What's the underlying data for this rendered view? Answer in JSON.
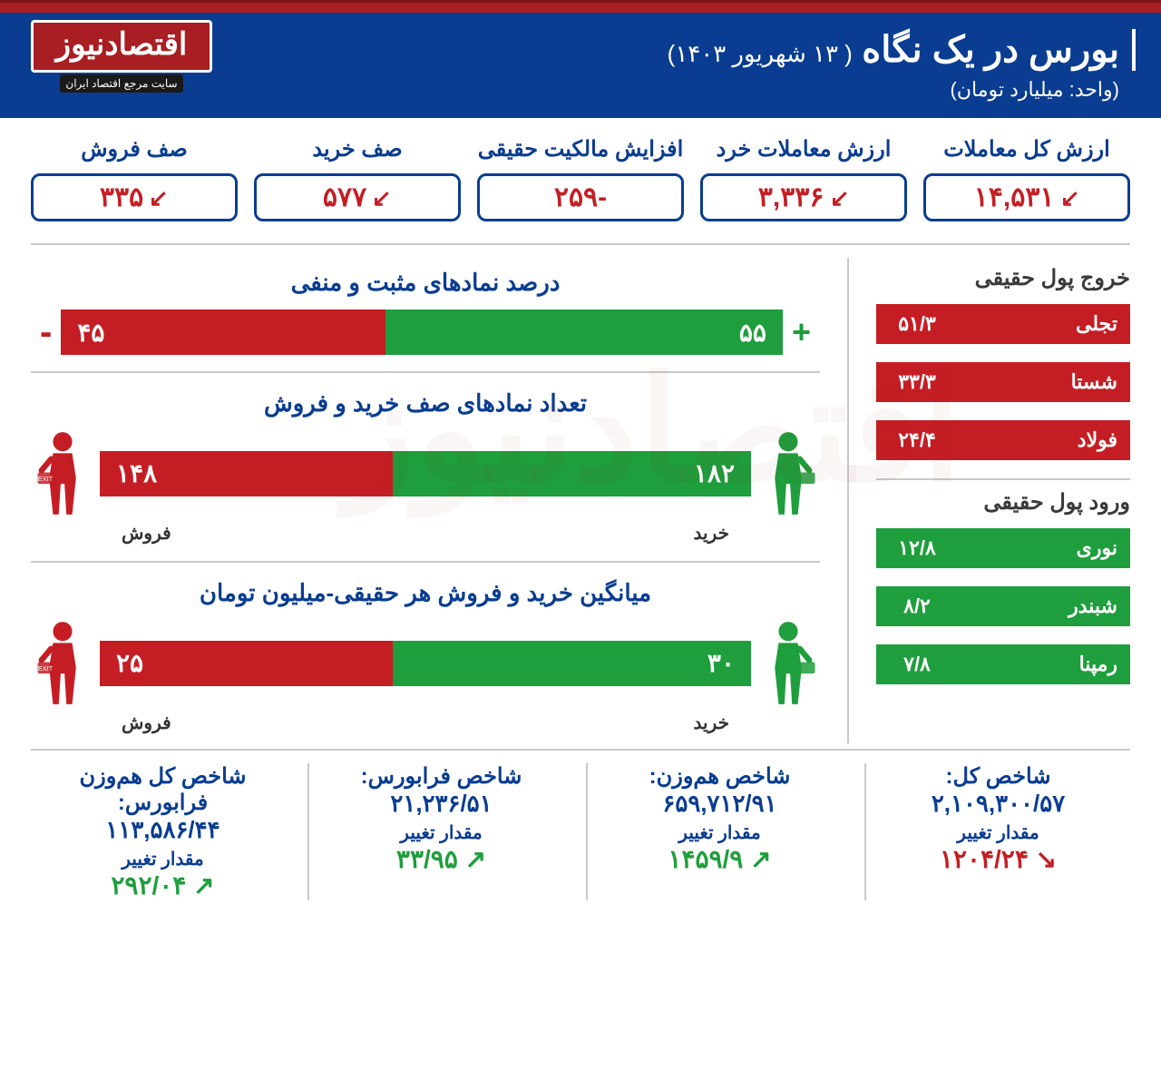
{
  "header": {
    "title": "بورس در یک نگاه",
    "date": "( ۱۳ شهریور ۱۴۰۳)",
    "unit": "(واحد: میلیارد تومان)",
    "logo_text": "اقتصادنیوز",
    "logo_sub": "سایت مرجع اقتصاد ایران"
  },
  "colors": {
    "blue": "#0a3d91",
    "red": "#c41e24",
    "green": "#1e9e3c",
    "dark_red": "#a91e22",
    "grey_line": "#c9c9c9",
    "text_dark": "#3a3a3a"
  },
  "top_stats": [
    {
      "label": "ارزش کل معاملات",
      "value": "۱۴,۵۳۱",
      "trend": "down",
      "color": "red"
    },
    {
      "label": "ارزش معاملات خرد",
      "value": "۳,۳۳۶",
      "trend": "down",
      "color": "red"
    },
    {
      "label": "افزایش مالکیت حقیقی",
      "value": "-۲۵۹",
      "trend": "none",
      "color": "red"
    },
    {
      "label": "صف خرید",
      "value": "۵۷۷",
      "trend": "down",
      "color": "red"
    },
    {
      "label": "صف فروش",
      "value": "۳۳۵",
      "trend": "down",
      "color": "red"
    }
  ],
  "side_outflow": {
    "title": "خروج پول حقیقی",
    "rows": [
      {
        "name": "تجلی",
        "value": "۵۱/۳"
      },
      {
        "name": "شستا",
        "value": "۳۳/۳"
      },
      {
        "name": "فولاد",
        "value": "۲۴/۴"
      }
    ],
    "bar_color": "#c41e24"
  },
  "side_inflow": {
    "title": "ورود پول حقیقی",
    "rows": [
      {
        "name": "نوری",
        "value": "۱۲/۸"
      },
      {
        "name": "شبندر",
        "value": "۸/۲"
      },
      {
        "name": "رمپنا",
        "value": "۷/۸"
      }
    ],
    "bar_color": "#1e9e3c"
  },
  "charts": {
    "pos_neg": {
      "title": "درصد نمادهای مثبت و منفی",
      "pos": {
        "value": "۵۵",
        "pct": 55,
        "color": "#1e9e3c"
      },
      "neg": {
        "value": "۴۵",
        "pct": 45,
        "color": "#c41e24"
      },
      "show_signs": true
    },
    "queue": {
      "title": "تعداد نمادهای صف خرید و فروش",
      "buy": {
        "value": "۱۸۲",
        "label": "خرید",
        "pct": 55,
        "color": "#1e9e3c"
      },
      "sell": {
        "value": "۱۴۸",
        "label": "فروش",
        "pct": 45,
        "color": "#c41e24"
      },
      "show_icons": true
    },
    "avg": {
      "title": "میانگین خرید و فروش هر حقیقی-میلیون تومان",
      "buy": {
        "value": "۳۰",
        "label": "خرید",
        "pct": 55,
        "color": "#1e9e3c"
      },
      "sell": {
        "value": "۲۵",
        "label": "فروش",
        "pct": 45,
        "color": "#c41e24"
      },
      "show_icons": true
    }
  },
  "indices": [
    {
      "title": "شاخص کل:",
      "value": "۲,۱۰۹,۳۰۰/۵۷",
      "change_label": "مقدار تغییر",
      "change": "۱۲۰۴/۲۴",
      "dir": "down"
    },
    {
      "title": "شاخص هم‌وزن:",
      "value": "۶۵۹,۷۱۲/۹۱",
      "change_label": "مقدار تغییر",
      "change": "۱۴۵۹/۹",
      "dir": "up"
    },
    {
      "title": "شاخص فرابورس:",
      "value": "۲۱,۲۳۶/۵۱",
      "change_label": "مقدار تغییر",
      "change": "۳۳/۹۵",
      "dir": "up"
    },
    {
      "title": "شاخص کل هم‌وزن فرابورس:",
      "value": "۱۱۳,۵۸۶/۴۴",
      "change_label": "مقدار تغییر",
      "change": "۲۹۲/۰۴",
      "dir": "up"
    }
  ]
}
